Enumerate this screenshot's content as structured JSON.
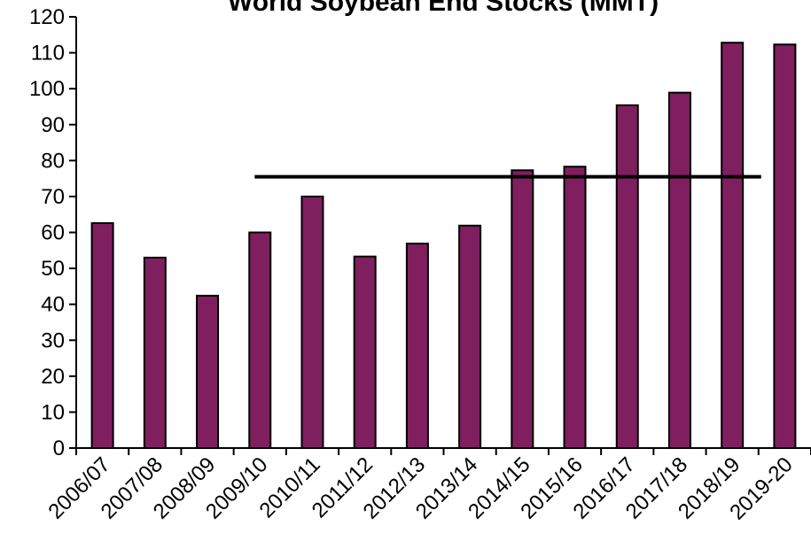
{
  "chart_data": {
    "type": "bar",
    "title": "World Soybean End Stocks (MMT)",
    "xlabel": "",
    "ylabel": "",
    "categories": [
      "2006/07",
      "2007/08",
      "2008/09",
      "2009/10",
      "2010/11",
      "2011/12",
      "2012/13",
      "2013/14",
      "2014/15",
      "2015/16",
      "2016/17",
      "2017/18",
      "2018/19",
      "2019-20"
    ],
    "values": [
      62.6,
      53.0,
      42.4,
      60.0,
      70.0,
      53.3,
      56.9,
      61.9,
      77.3,
      78.3,
      95.4,
      98.9,
      112.8,
      112.3
    ],
    "ylim": [
      0,
      120
    ],
    "yticks": [
      0,
      10,
      20,
      30,
      40,
      50,
      60,
      70,
      80,
      90,
      100,
      110,
      120
    ],
    "reference_line": {
      "value": 75.5,
      "from_category": "2009/10",
      "to_category": "2018/19"
    },
    "grid": false,
    "colors": {
      "bar": "#7f1f5f",
      "bar_outline": "#000000",
      "axis": "#000000",
      "reference_line": "#000000"
    }
  }
}
